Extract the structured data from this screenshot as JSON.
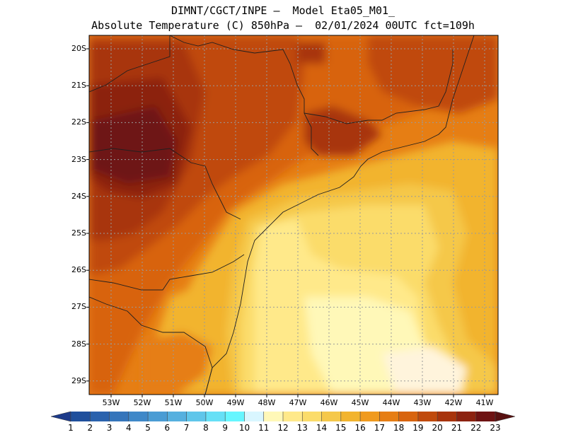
{
  "title": {
    "line1": "DIMNT/CGCT/INPE –  Model Eta05_M01_",
    "line2": "Absolute Temperature (C) 850hPa –  02/01/2024 00UTC fct=109h"
  },
  "map": {
    "latitude_labels": [
      "20S",
      "21S",
      "22S",
      "23S",
      "24S",
      "25S",
      "26S",
      "27S",
      "28S",
      "29S"
    ],
    "longitude_labels": [
      "53W",
      "52W",
      "51W",
      "50W",
      "49W",
      "48W",
      "47W",
      "46W",
      "45W",
      "44W",
      "43W",
      "42W",
      "41W"
    ],
    "grid": true,
    "variable": "Absolute Temperature",
    "units": "C",
    "level": "850hPa"
  },
  "colorbar": {
    "labels": [
      "1",
      "2",
      "3",
      "4",
      "5",
      "6",
      "7",
      "8",
      "9",
      "10",
      "11",
      "12",
      "13",
      "14",
      "15",
      "16",
      "17",
      "18",
      "19",
      "20",
      "21",
      "22",
      "23"
    ],
    "colors": [
      "#1c3a8a",
      "#1f4f9c",
      "#2a62ad",
      "#3575bb",
      "#3f88c8",
      "#4a9cd4",
      "#56b0df",
      "#5fc6ea",
      "#66e0f6",
      "#66f6ff",
      "#d9f6ff",
      "#fff8b8",
      "#ffe98a",
      "#fbdc6a",
      "#f5c84a",
      "#f2b42e",
      "#f09a1e",
      "#e67e14",
      "#d8640e",
      "#c04a0c",
      "#a8340c",
      "#8c2210",
      "#6e1212",
      "#581010"
    ],
    "arrows": "both"
  }
}
